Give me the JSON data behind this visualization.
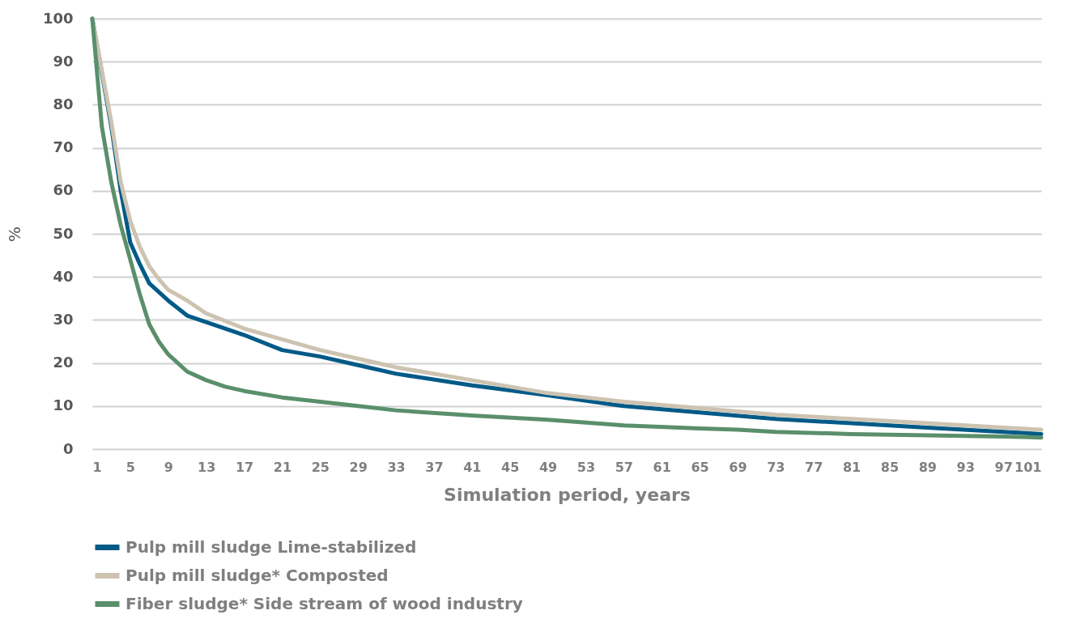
{
  "chart_data": {
    "type": "line",
    "xlabel": "Simulation period, years",
    "ylabel": "%",
    "xlim": [
      1,
      101
    ],
    "xticks": [
      1,
      5,
      9,
      13,
      17,
      21,
      25,
      29,
      33,
      37,
      41,
      45,
      49,
      53,
      57,
      61,
      65,
      69,
      73,
      77,
      81,
      85,
      89,
      93,
      97,
      101
    ],
    "ylim": [
      0,
      100
    ],
    "yticks": [
      0,
      10,
      20,
      30,
      40,
      50,
      60,
      70,
      80,
      90,
      100
    ],
    "grid": "y",
    "legend": "bottom",
    "marker": "none",
    "line_style": "solid",
    "series": [
      {
        "name": "Pulp mill sludge Lime-stabilized",
        "color": "#005a87",
        "x": [
          1,
          3,
          4,
          5,
          6,
          7,
          9,
          11,
          13,
          17,
          21,
          25,
          29,
          33,
          41,
          49,
          57,
          65,
          73,
          81,
          89,
          97,
          101
        ],
        "values": [
          100,
          75,
          60,
          48,
          43,
          38.5,
          34.5,
          31,
          29.5,
          26.5,
          23,
          21.5,
          19.5,
          17.5,
          14.8,
          12.5,
          10,
          8.5,
          7,
          6,
          5,
          4,
          3.5
        ]
      },
      {
        "name": "Pulp mill sludge* Composted",
        "color": "#cdc3b1",
        "x": [
          1,
          3,
          4,
          5,
          6,
          7,
          8,
          9,
          11,
          13,
          17,
          21,
          25,
          29,
          33,
          41,
          49,
          57,
          65,
          73,
          81,
          89,
          97,
          101
        ],
        "values": [
          100,
          76,
          62,
          53,
          47,
          42.5,
          39.5,
          37,
          34.5,
          31.5,
          28,
          25.5,
          23,
          21,
          19,
          16,
          13,
          11,
          9.5,
          8,
          7,
          6,
          5,
          4.5
        ]
      },
      {
        "name": "Fiber sludge* Side stream of wood industry",
        "color": "#5a8f6b",
        "x": [
          1,
          2,
          3,
          4,
          5,
          6,
          7,
          8,
          9,
          11,
          13,
          15,
          17,
          21,
          25,
          29,
          33,
          41,
          49,
          57,
          65,
          69,
          73,
          81,
          89,
          97,
          101
        ],
        "values": [
          100,
          75,
          62,
          52,
          44,
          36,
          29,
          25,
          22,
          18,
          16,
          14.5,
          13.5,
          12,
          11,
          10,
          9,
          7.8,
          6.8,
          5.5,
          4.8,
          4.5,
          4,
          3.5,
          3.2,
          2.9,
          2.7
        ]
      }
    ]
  }
}
